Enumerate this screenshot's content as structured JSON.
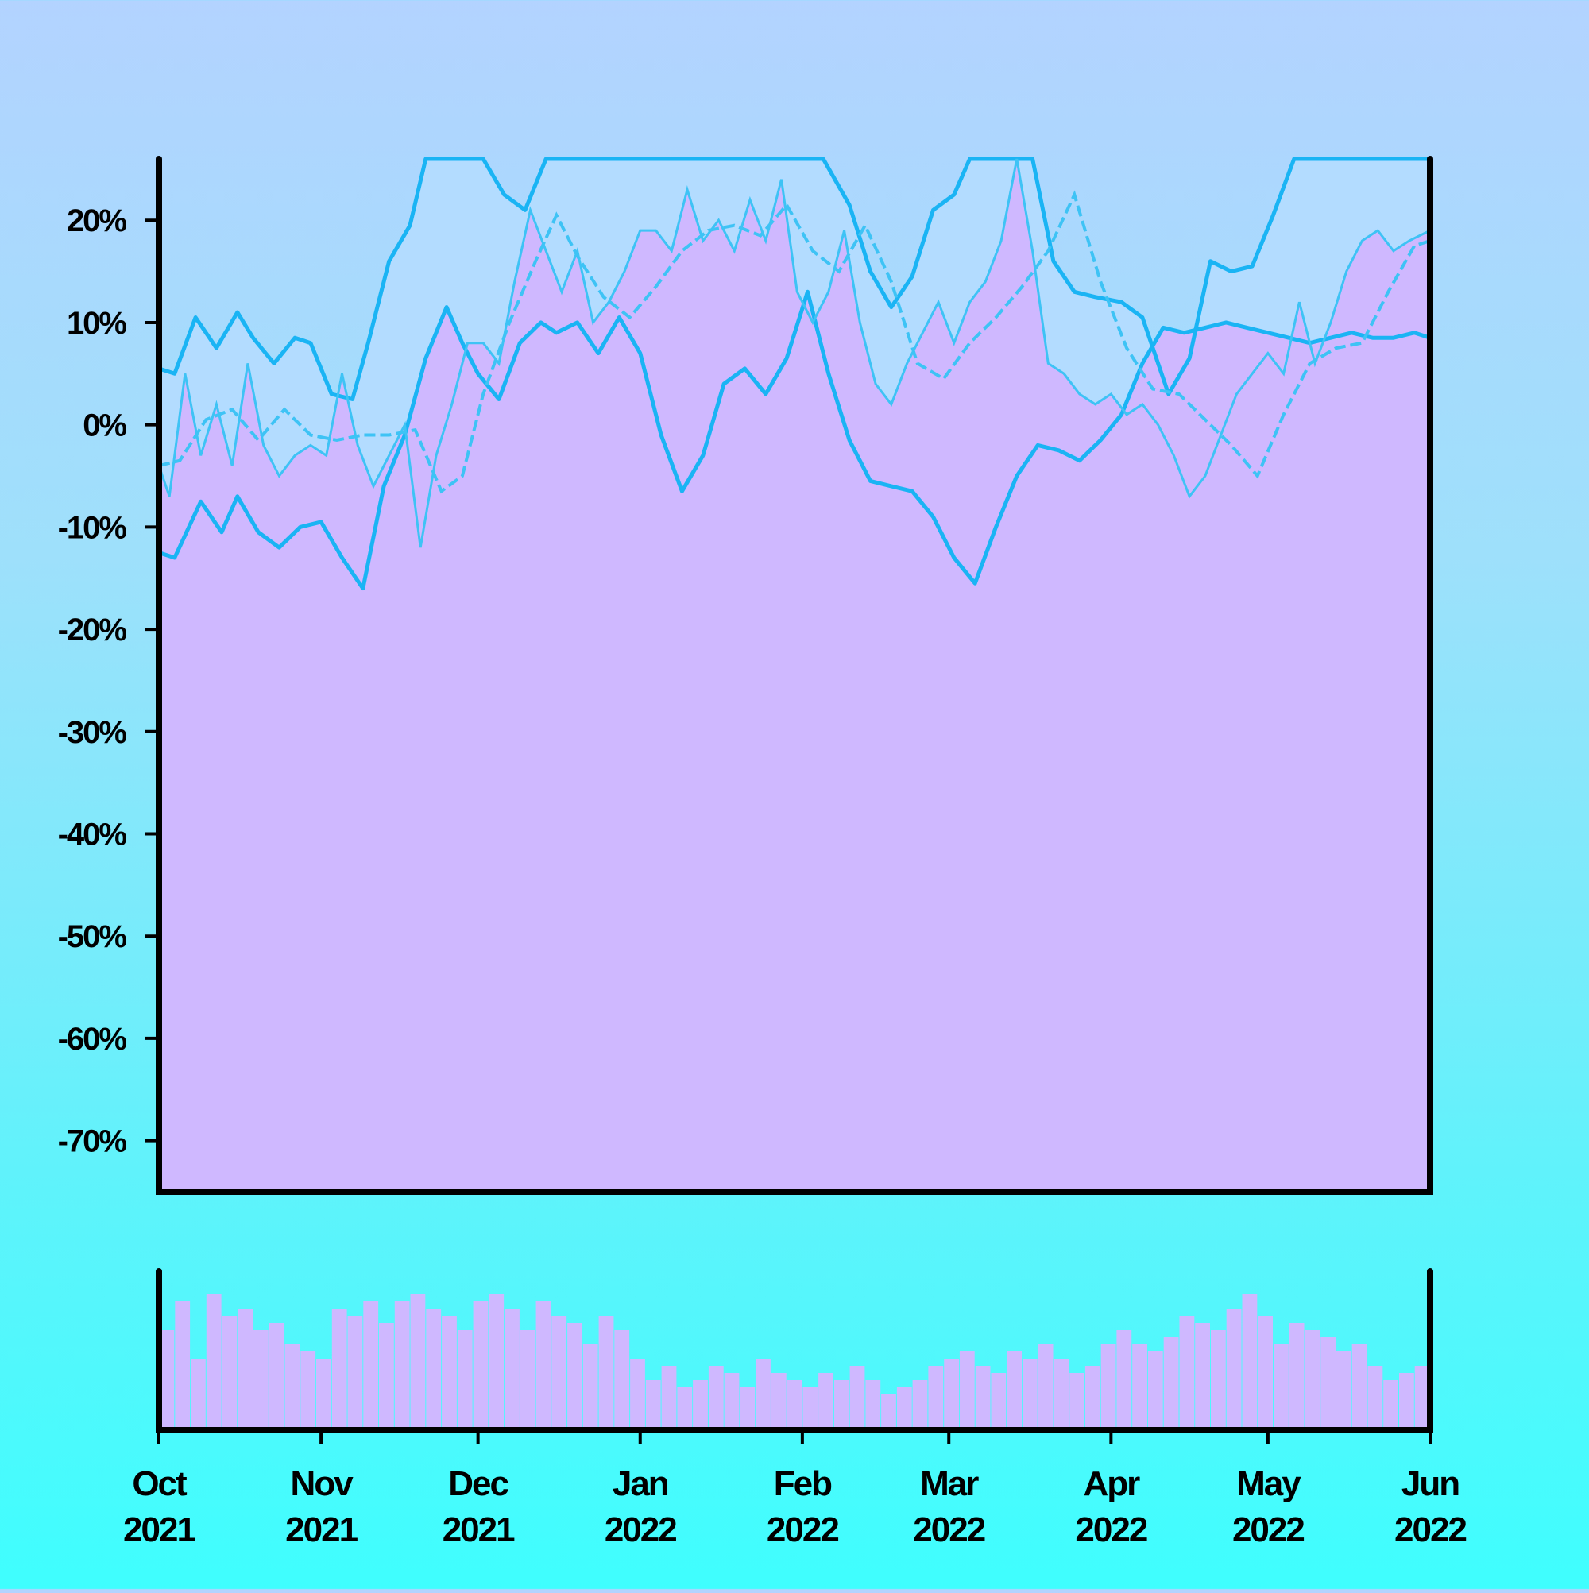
{
  "colors": {
    "area_fill": "#cfb8ff",
    "band_fill": "#b3dcff",
    "line": "#1ab4f4",
    "line_light": "#3ec3f5",
    "axis": "#000000"
  },
  "chart_data": {
    "type": "area",
    "title": "",
    "xlabel": "",
    "ylabel": "",
    "ylim": [
      -75,
      26
    ],
    "xlim": [
      "2021-10-01",
      "2022-06-01"
    ],
    "y_ticks": [
      "20%",
      "10%",
      "0%",
      "-10%",
      "-20%",
      "-30%",
      "-40%",
      "-50%",
      "-60%",
      "-70%"
    ],
    "y_tick_values": [
      20,
      10,
      0,
      -10,
      -20,
      -30,
      -40,
      -50,
      -60,
      -70
    ],
    "x_ticks": [
      {
        "month": "Oct",
        "year": "2021",
        "date": "2021-10-01"
      },
      {
        "month": "Nov",
        "year": "2021",
        "date": "2021-11-01"
      },
      {
        "month": "Dec",
        "year": "2021",
        "date": "2021-12-01"
      },
      {
        "month": "Jan",
        "year": "2022",
        "date": "2022-01-01"
      },
      {
        "month": "Feb",
        "year": "2022",
        "date": "2022-02-01"
      },
      {
        "month": "Mar",
        "year": "2022",
        "date": "2022-03-01"
      },
      {
        "month": "Apr",
        "year": "2022",
        "date": "2022-04-01"
      },
      {
        "month": "May",
        "year": "2022",
        "date": "2022-05-01"
      },
      {
        "month": "Jun",
        "year": "2022",
        "date": "2022-06-01"
      }
    ],
    "grid": false,
    "legend": "none",
    "series": [
      {
        "role": "upper-band",
        "x": [
          "2021-10-01",
          "2021-10-04",
          "2021-10-08",
          "2021-10-12",
          "2021-10-16",
          "2021-10-19",
          "2021-10-23",
          "2021-10-27",
          "2021-10-30",
          "2021-11-03",
          "2021-11-07",
          "2021-11-10",
          "2021-11-14",
          "2021-11-18",
          "2021-11-21",
          "2021-11-25",
          "2021-11-28",
          "2021-12-02",
          "2021-12-06",
          "2021-12-10",
          "2021-12-14",
          "2021-12-16",
          "2021-12-20",
          "2021-12-25",
          "2021-12-28",
          "2022-01-01",
          "2022-01-03",
          "2022-01-07",
          "2022-01-11",
          "2022-01-15",
          "2022-01-20",
          "2022-01-25",
          "2022-02-02",
          "2022-02-05",
          "2022-02-10",
          "2022-02-14",
          "2022-02-18",
          "2022-02-22",
          "2022-02-26",
          "2022-03-02",
          "2022-03-05",
          "2022-03-09",
          "2022-03-13",
          "2022-03-17",
          "2022-03-21",
          "2022-03-25",
          "2022-03-29",
          "2022-04-03",
          "2022-04-07",
          "2022-04-12",
          "2022-04-16",
          "2022-04-20",
          "2022-04-24",
          "2022-04-28",
          "2022-05-02",
          "2022-05-06",
          "2022-05-10",
          "2022-05-14",
          "2022-05-18",
          "2022-05-22",
          "2022-05-26",
          "2022-05-29",
          "2022-06-01"
        ],
        "y": [
          5.5,
          5.0,
          10.5,
          7.5,
          11.0,
          8.5,
          6.0,
          8.5,
          8.0,
          3.0,
          2.5,
          8.0,
          16.0,
          19.5,
          26.0,
          26.0,
          26.0,
          26.0,
          22.5,
          21.0,
          26.0,
          26.0,
          26.0,
          26.0,
          26.0,
          26.0,
          26.0,
          26.0,
          26.0,
          26.0,
          26.0,
          26.0,
          26.0,
          26.0,
          21.5,
          15.0,
          11.5,
          14.5,
          21.0,
          22.5,
          26.0,
          26.0,
          26.0,
          26.0,
          16.0,
          13.0,
          12.5,
          12.0,
          10.5,
          3.0,
          6.5,
          16.0,
          15.0,
          15.5,
          20.5,
          26.0,
          26.0,
          26.0,
          26.0,
          26.0,
          26.0,
          26.0,
          26.0
        ]
      },
      {
        "role": "lower-band",
        "x": [
          "2021-10-01",
          "2021-10-04",
          "2021-10-09",
          "2021-10-13",
          "2021-10-16",
          "2021-10-20",
          "2021-10-24",
          "2021-10-28",
          "2021-11-01",
          "2021-11-05",
          "2021-11-09",
          "2021-11-13",
          "2021-11-17",
          "2021-11-21",
          "2021-11-25",
          "2021-11-28",
          "2021-12-01",
          "2021-12-05",
          "2021-12-09",
          "2021-12-13",
          "2021-12-16",
          "2021-12-20",
          "2021-12-24",
          "2021-12-28",
          "2022-01-01",
          "2022-01-05",
          "2022-01-09",
          "2022-01-13",
          "2022-01-17",
          "2022-01-21",
          "2022-01-25",
          "2022-01-29",
          "2022-02-02",
          "2022-02-06",
          "2022-02-10",
          "2022-02-14",
          "2022-02-18",
          "2022-02-22",
          "2022-02-26",
          "2022-03-02",
          "2022-03-06",
          "2022-03-10",
          "2022-03-14",
          "2022-03-18",
          "2022-03-22",
          "2022-03-26",
          "2022-03-30",
          "2022-04-03",
          "2022-04-07",
          "2022-04-11",
          "2022-04-15",
          "2022-04-19",
          "2022-04-23",
          "2022-04-27",
          "2022-05-01",
          "2022-05-05",
          "2022-05-09",
          "2022-05-13",
          "2022-05-17",
          "2022-05-21",
          "2022-05-25",
          "2022-05-29",
          "2022-06-01"
        ],
        "y": [
          -12.5,
          -13.0,
          -7.5,
          -10.5,
          -7.0,
          -10.5,
          -12.0,
          -10.0,
          -9.5,
          -13.0,
          -16.0,
          -6.0,
          -1.0,
          6.5,
          11.5,
          8.0,
          5.0,
          2.5,
          8.0,
          10.0,
          9.0,
          10.0,
          7.0,
          10.5,
          7.0,
          -1.0,
          -6.5,
          -3.0,
          4.0,
          5.5,
          3.0,
          6.5,
          13.0,
          5.0,
          -1.5,
          -5.5,
          -6.0,
          -6.5,
          -9.0,
          -13.0,
          -15.5,
          -10.0,
          -5.0,
          -2.0,
          -2.5,
          -3.5,
          -1.5,
          1.0,
          6.0,
          9.5,
          9.0,
          9.5,
          10.0,
          9.5,
          9.0,
          8.5,
          8.0,
          8.5,
          9.0,
          8.5,
          8.5,
          9.0,
          8.5
        ]
      },
      {
        "role": "moving-average",
        "x": [
          "2021-10-01",
          "2021-10-05",
          "2021-10-10",
          "2021-10-15",
          "2021-10-20",
          "2021-10-25",
          "2021-10-30",
          "2021-11-04",
          "2021-11-09",
          "2021-11-14",
          "2021-11-19",
          "2021-11-24",
          "2021-11-28",
          "2021-12-02",
          "2021-12-07",
          "2021-12-12",
          "2021-12-16",
          "2021-12-20",
          "2021-12-25",
          "2021-12-30",
          "2022-01-04",
          "2022-01-09",
          "2022-01-14",
          "2022-01-19",
          "2022-01-24",
          "2022-01-29",
          "2022-02-03",
          "2022-02-08",
          "2022-02-13",
          "2022-02-18",
          "2022-02-23",
          "2022-02-28",
          "2022-03-05",
          "2022-03-10",
          "2022-03-15",
          "2022-03-20",
          "2022-03-25",
          "2022-03-30",
          "2022-04-04",
          "2022-04-09",
          "2022-04-14",
          "2022-04-19",
          "2022-04-24",
          "2022-04-29",
          "2022-05-04",
          "2022-05-09",
          "2022-05-14",
          "2022-05-19",
          "2022-05-24",
          "2022-05-29",
          "2022-06-01"
        ],
        "y": [
          -4.0,
          -3.5,
          0.5,
          1.5,
          -1.5,
          1.5,
          -1.0,
          -1.5,
          -1.0,
          -1.0,
          -0.5,
          -6.5,
          -5.0,
          3.0,
          10.0,
          16.0,
          20.5,
          16.5,
          12.5,
          10.5,
          13.5,
          17.0,
          19.0,
          19.5,
          18.5,
          21.5,
          17.0,
          15.0,
          19.5,
          14.0,
          6.0,
          4.5,
          8.0,
          10.5,
          13.5,
          17.0,
          22.5,
          14.0,
          7.5,
          3.5,
          3.0,
          0.5,
          -2.0,
          -5.0,
          1.0,
          6.0,
          7.5,
          8.0,
          13.0,
          17.5,
          18.0
        ]
      },
      {
        "role": "daily",
        "x": [
          "2021-10-01",
          "2021-10-03",
          "2021-10-06",
          "2021-10-09",
          "2021-10-12",
          "2021-10-15",
          "2021-10-18",
          "2021-10-21",
          "2021-10-24",
          "2021-10-27",
          "2021-10-30",
          "2021-11-02",
          "2021-11-05",
          "2021-11-08",
          "2021-11-11",
          "2021-11-14",
          "2021-11-17",
          "2021-11-20",
          "2021-11-23",
          "2021-11-26",
          "2021-11-29",
          "2021-12-02",
          "2021-12-05",
          "2021-12-08",
          "2021-12-11",
          "2021-12-14",
          "2021-12-17",
          "2021-12-20",
          "2021-12-23",
          "2021-12-26",
          "2021-12-29",
          "2022-01-01",
          "2022-01-04",
          "2022-01-07",
          "2022-01-10",
          "2022-01-13",
          "2022-01-16",
          "2022-01-19",
          "2022-01-22",
          "2022-01-25",
          "2022-01-28",
          "2022-01-31",
          "2022-02-03",
          "2022-02-06",
          "2022-02-09",
          "2022-02-12",
          "2022-02-15",
          "2022-02-18",
          "2022-02-21",
          "2022-02-24",
          "2022-02-27",
          "2022-03-02",
          "2022-03-05",
          "2022-03-08",
          "2022-03-11",
          "2022-03-14",
          "2022-03-17",
          "2022-03-20",
          "2022-03-23",
          "2022-03-26",
          "2022-03-29",
          "2022-04-01",
          "2022-04-04",
          "2022-04-07",
          "2022-04-10",
          "2022-04-13",
          "2022-04-16",
          "2022-04-19",
          "2022-04-22",
          "2022-04-25",
          "2022-04-28",
          "2022-05-01",
          "2022-05-04",
          "2022-05-07",
          "2022-05-10",
          "2022-05-13",
          "2022-05-16",
          "2022-05-19",
          "2022-05-22",
          "2022-05-25",
          "2022-05-28",
          "2022-06-01"
        ],
        "y": [
          -4.0,
          -7.0,
          5.0,
          -3.0,
          2.0,
          -4.0,
          6.0,
          -2.0,
          -5.0,
          -3.0,
          -2.0,
          -3.0,
          5.0,
          -2.0,
          -6.0,
          -3.0,
          0.0,
          -12.0,
          -3.0,
          2.0,
          8.0,
          8.0,
          6.0,
          14.0,
          21.0,
          17.0,
          13.0,
          17.0,
          10.0,
          12.0,
          15.0,
          19.0,
          19.0,
          17.0,
          23.0,
          18.0,
          20.0,
          17.0,
          22.0,
          18.0,
          24.0,
          13.0,
          10.0,
          13.0,
          19.0,
          10.0,
          4.0,
          2.0,
          6.0,
          9.0,
          12.0,
          8.0,
          12.0,
          14.0,
          18.0,
          26.0,
          17.0,
          6.0,
          5.0,
          3.0,
          2.0,
          3.0,
          1.0,
          2.0,
          0.0,
          -3.0,
          -7.0,
          -5.0,
          -1.0,
          3.0,
          5.0,
          7.0,
          5.0,
          12.0,
          6.0,
          10.0,
          15.0,
          18.0,
          19.0,
          17.0,
          18.0,
          19.0
        ]
      }
    ],
    "volume": {
      "type": "bar",
      "note_level": "relative",
      "x_start": "2021-10-01",
      "x_end": "2022-06-01",
      "values": [
        0.7,
        0.9,
        0.5,
        0.95,
        0.8,
        0.85,
        0.7,
        0.75,
        0.6,
        0.55,
        0.5,
        0.85,
        0.8,
        0.9,
        0.75,
        0.9,
        0.95,
        0.85,
        0.8,
        0.7,
        0.9,
        0.95,
        0.85,
        0.7,
        0.9,
        0.8,
        0.75,
        0.6,
        0.8,
        0.7,
        0.5,
        0.35,
        0.45,
        0.3,
        0.35,
        0.45,
        0.4,
        0.3,
        0.5,
        0.4,
        0.35,
        0.3,
        0.4,
        0.35,
        0.45,
        0.35,
        0.25,
        0.3,
        0.35,
        0.45,
        0.5,
        0.55,
        0.45,
        0.4,
        0.55,
        0.5,
        0.6,
        0.5,
        0.4,
        0.45,
        0.6,
        0.7,
        0.6,
        0.55,
        0.65,
        0.8,
        0.75,
        0.7,
        0.85,
        0.95,
        0.8,
        0.6,
        0.75,
        0.7,
        0.65,
        0.55,
        0.6,
        0.45,
        0.35,
        0.4,
        0.45
      ]
    }
  }
}
